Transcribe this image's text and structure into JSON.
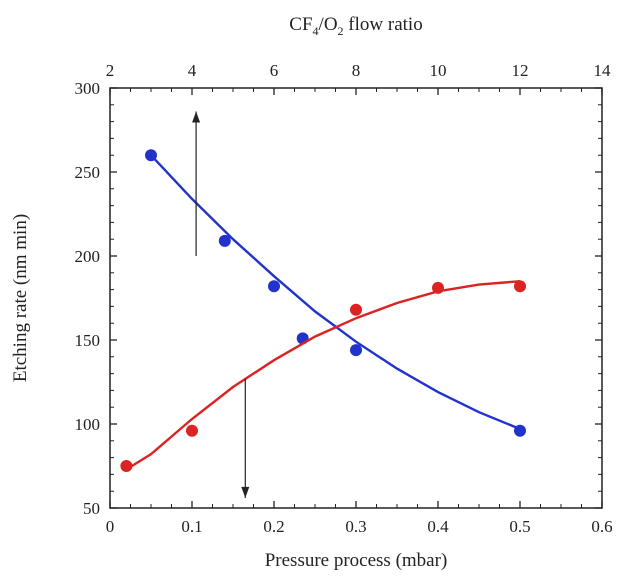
{
  "chart_data": {
    "type": "scatter",
    "top_axis": {
      "label_parts": {
        "a": "CF",
        "a_sub": "4",
        "slash": "/O",
        "b_sub": "2",
        "rest": " flow ratio"
      },
      "range": [
        2,
        14
      ],
      "ticks": [
        "2",
        "4",
        "6",
        "8",
        "10",
        "12",
        "14"
      ]
    },
    "x_axis": {
      "label": "Pressure process (mbar)",
      "range": [
        0,
        0.6
      ],
      "ticks": [
        "0",
        "0.1",
        "0.2",
        "0.3",
        "0.4",
        "0.5",
        "0.6"
      ]
    },
    "y_axis": {
      "label": "Etching rate (nm min)",
      "range": [
        50,
        300
      ],
      "ticks": [
        "50",
        "100",
        "150",
        "200",
        "250",
        "300"
      ]
    },
    "series": [
      {
        "color": "#2233cc",
        "x_axis": "top",
        "points": [
          [
            3,
            260
          ],
          [
            4.8,
            209
          ],
          [
            6,
            182
          ],
          [
            6.7,
            151
          ],
          [
            8,
            144
          ],
          [
            12,
            96
          ]
        ],
        "fit": [
          [
            3,
            260
          ],
          [
            4,
            234
          ],
          [
            5,
            210
          ],
          [
            6,
            188
          ],
          [
            7,
            167
          ],
          [
            8,
            149
          ],
          [
            9,
            133
          ],
          [
            10,
            119
          ],
          [
            11,
            107
          ],
          [
            12,
            97
          ]
        ],
        "arrow": {
          "x": 4.1,
          "from_y": 200,
          "to_y": 286
        }
      },
      {
        "color": "#dd2222",
        "x_axis": "bottom",
        "points": [
          [
            0.02,
            75
          ],
          [
            0.1,
            96
          ],
          [
            0.3,
            168
          ],
          [
            0.4,
            181
          ],
          [
            0.5,
            182
          ]
        ],
        "fit": [
          [
            0.02,
            73
          ],
          [
            0.05,
            82
          ],
          [
            0.1,
            103
          ],
          [
            0.15,
            122
          ],
          [
            0.2,
            138
          ],
          [
            0.25,
            152
          ],
          [
            0.3,
            163
          ],
          [
            0.35,
            172
          ],
          [
            0.4,
            179
          ],
          [
            0.45,
            183
          ],
          [
            0.5,
            185
          ]
        ],
        "arrow": {
          "x": 0.165,
          "from_y": 127,
          "to_y": 56
        }
      }
    ]
  }
}
